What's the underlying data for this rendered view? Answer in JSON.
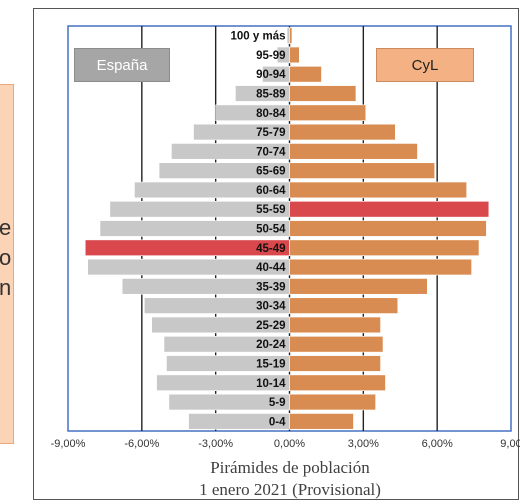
{
  "left_panel": {
    "fragments": [
      "e",
      "o",
      "n"
    ]
  },
  "legend": {
    "left": "España",
    "right": "CyL"
  },
  "caption": {
    "line1": "Pirámides de población",
    "line2": "1 enero 2021 (Provisional)"
  },
  "colors": {
    "left_bar": "#c8c8c8",
    "right_bar": "#d98c52",
    "highlight": "#d8484c",
    "axis_border": "#4472c4",
    "gridline": "#222222"
  },
  "chart_data": {
    "type": "bar",
    "orientation": "horizontal",
    "categories": [
      "100 y más",
      "95-99",
      "90-94",
      "85-89",
      "80-84",
      "75-79",
      "70-74",
      "65-69",
      "60-64",
      "55-59",
      "50-54",
      "45-49",
      "40-44",
      "35-39",
      "30-34",
      "25-29",
      "20-24",
      "15-19",
      "10-14",
      "5-9",
      "0-4"
    ],
    "series": [
      {
        "name": "España",
        "values": [
          -0.1,
          -0.5,
          -1.1,
          -2.2,
          -3.0,
          -3.9,
          -4.8,
          -5.3,
          -6.3,
          -7.3,
          -7.7,
          -8.3,
          -8.2,
          -6.8,
          -5.9,
          -5.6,
          -5.1,
          -5.0,
          -5.4,
          -4.9,
          -4.1
        ],
        "highlight_index": 11
      },
      {
        "name": "CyL",
        "values": [
          0.1,
          0.4,
          1.3,
          2.7,
          3.1,
          4.3,
          5.2,
          5.9,
          7.2,
          8.1,
          8.0,
          7.7,
          7.4,
          5.6,
          4.4,
          3.7,
          3.8,
          3.7,
          3.9,
          3.5,
          2.6
        ],
        "highlight_index": 9
      }
    ],
    "xlim": [
      -9,
      9
    ],
    "xticks": [
      -9,
      -6,
      -3,
      0,
      3,
      6,
      9
    ],
    "xtick_labels": [
      "-9,00%",
      "-6,00%",
      "-3,00%",
      "0,00%",
      "3,00%",
      "6,00%",
      "9,00"
    ],
    "grid": true
  }
}
